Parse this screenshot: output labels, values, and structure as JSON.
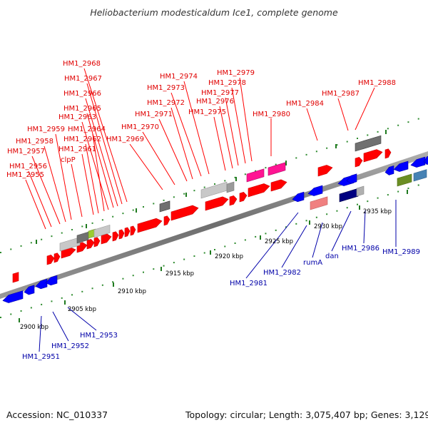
{
  "title": "Heliobacterium modesticaldum Ice1, complete genome",
  "footer": {
    "accession": "Accession: NC_010337",
    "summary": "Topology: circular; Length: 3,075,407 bp; Genes: 3,129"
  },
  "scale_labels": [
    "2900 kbp",
    "2905 kbp",
    "2910 kbp",
    "2915 kbp",
    "2920 kbp",
    "2925 kbp",
    "2930 kbp",
    "2935 kbp"
  ],
  "top_labels": [
    "HM1_2968",
    "HM1_2967",
    "HM1_2966",
    "HM1_2965",
    "HM1_2963",
    "HM1_2964",
    "HM1_2962",
    "HM1_2961",
    "HM1_2959",
    "HM1_2958",
    "HM1_2957",
    "clpP",
    "HM1_2956",
    "HM1_2955",
    "HM1_2974",
    "HM1_2973",
    "HM1_2972",
    "HM1_2971",
    "HM1_2970",
    "HM1_2969",
    "HM1_2979",
    "HM1_2978",
    "HM1_2977",
    "HM1_2976",
    "HM1_2975",
    "HM1_2980",
    "HM1_2984",
    "HM1_2987",
    "HM1_2988"
  ],
  "bottom_labels": [
    "HM1_2951",
    "HM1_2952",
    "HM1_2953",
    "HM1_2981",
    "HM1_2982",
    "rumA",
    "dan",
    "HM1_2986",
    "HM1_2989"
  ],
  "colors": {
    "forward_gene": "#ff0000",
    "reverse_gene": "#0000ff",
    "label_forward": "#e00000",
    "label_reverse": "#0000a8",
    "backbone": "#7a7a7a",
    "tick_mark": "#228b22",
    "grey_gene": "#c8c8c8",
    "dark_grey_gene": "#707070",
    "pink_gene": "#ff1493",
    "navy_gene": "#000080",
    "salmon_gene": "#f08080",
    "olive_gene": "#6b8e23",
    "steelblue_gene": "#4682b4",
    "yellowgreen_gene": "#9acd32"
  }
}
